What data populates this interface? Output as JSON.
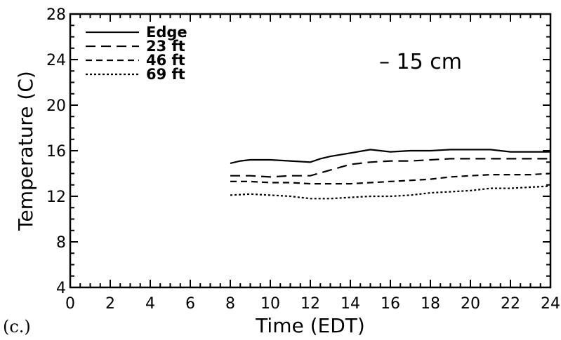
{
  "chart_data": {
    "type": "line",
    "panel_label": "(c.)",
    "xlabel": "Time (EDT)",
    "ylabel": "Temperature (C)",
    "annotation": "– 15 cm",
    "xlim": [
      0,
      24
    ],
    "ylim": [
      4,
      28
    ],
    "xticks": [
      0,
      2,
      4,
      6,
      8,
      10,
      12,
      14,
      16,
      18,
      20,
      22,
      24
    ],
    "yticks": [
      4,
      8,
      12,
      16,
      20,
      24,
      28
    ],
    "grid": false,
    "legend_position": "top-left",
    "series": [
      {
        "name": "Edge",
        "style": "solid",
        "x": [
          8,
          8.5,
          9,
          10,
          11,
          12,
          12.5,
          13,
          14,
          15,
          16,
          17,
          18,
          19,
          20,
          21,
          22,
          23,
          24
        ],
        "y": [
          14.9,
          15.1,
          15.2,
          15.2,
          15.1,
          15.0,
          15.3,
          15.5,
          15.8,
          16.1,
          15.9,
          16.0,
          16.0,
          16.1,
          16.1,
          16.1,
          15.9,
          15.9,
          15.9
        ]
      },
      {
        "name": "23  ft",
        "style": "long-dash",
        "x": [
          8,
          9,
          10,
          11,
          12,
          13,
          14,
          15,
          16,
          17,
          18,
          19,
          20,
          21,
          22,
          23,
          24
        ],
        "y": [
          13.8,
          13.8,
          13.7,
          13.8,
          13.8,
          14.3,
          14.8,
          15.0,
          15.1,
          15.1,
          15.2,
          15.3,
          15.3,
          15.3,
          15.3,
          15.3,
          15.3
        ]
      },
      {
        "name": "46  ft",
        "style": "dash",
        "x": [
          8,
          9,
          10,
          11,
          12,
          13,
          14,
          15,
          16,
          17,
          18,
          19,
          20,
          21,
          22,
          23,
          24
        ],
        "y": [
          13.3,
          13.3,
          13.2,
          13.2,
          13.1,
          13.1,
          13.1,
          13.2,
          13.3,
          13.4,
          13.5,
          13.7,
          13.8,
          13.9,
          13.9,
          13.9,
          14.0
        ]
      },
      {
        "name": "69  ft",
        "style": "dot",
        "x": [
          8,
          9,
          10,
          11,
          12,
          13,
          14,
          15,
          16,
          17,
          18,
          19,
          20,
          21,
          22,
          23,
          24
        ],
        "y": [
          12.1,
          12.2,
          12.1,
          12.0,
          11.8,
          11.8,
          11.9,
          12.0,
          12.0,
          12.1,
          12.3,
          12.4,
          12.5,
          12.7,
          12.7,
          12.8,
          12.9
        ]
      }
    ]
  }
}
